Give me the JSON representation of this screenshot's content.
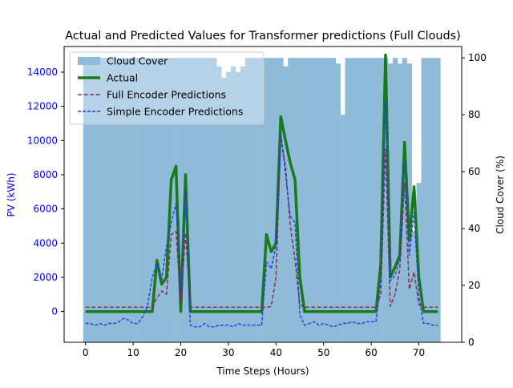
{
  "chart_data": {
    "type": "line",
    "title": "Actual and Predicted Values for Transformer predictions (Full Clouds)",
    "xlabel": "Time Steps (Hours)",
    "ylabel_left": "PV (kWh)",
    "ylabel_right": "Cloud Cover (%)",
    "xlim": [
      -4.5,
      79
    ],
    "ylim_left": [
      -1800,
      15500
    ],
    "ylim_right": [
      0,
      104
    ],
    "x_ticks": [
      0,
      10,
      20,
      30,
      40,
      50,
      60,
      70
    ],
    "y_left_ticks": [
      0,
      2000,
      4000,
      6000,
      8000,
      10000,
      12000,
      14000
    ],
    "y_right_ticks": [
      0,
      20,
      40,
      60,
      80,
      100
    ],
    "legend_position": "upper-left",
    "colors": {
      "cloud_cover": "#8fbbd9",
      "actual": "#1a7a1a",
      "full_encoder": "#8b2846",
      "simple_encoder": "#1f3fe0",
      "left_axis_text": "#0000ff"
    },
    "x": [
      0,
      1,
      2,
      3,
      4,
      5,
      6,
      7,
      8,
      9,
      10,
      11,
      12,
      13,
      14,
      15,
      16,
      17,
      18,
      19,
      20,
      21,
      22,
      23,
      24,
      25,
      26,
      27,
      28,
      29,
      30,
      31,
      32,
      33,
      34,
      35,
      36,
      37,
      38,
      39,
      40,
      41,
      42,
      43,
      44,
      45,
      46,
      47,
      48,
      49,
      50,
      51,
      52,
      53,
      54,
      55,
      56,
      57,
      58,
      59,
      60,
      61,
      62,
      63,
      64,
      65,
      66,
      67,
      68,
      69,
      70,
      71,
      72,
      73,
      74
    ],
    "series": [
      {
        "name": "Cloud Cover",
        "kind": "bar",
        "axis": "right",
        "values": [
          100,
          100,
          100,
          100,
          100,
          100,
          100,
          100,
          100,
          100,
          100,
          100,
          100,
          100,
          100,
          100,
          100,
          100,
          100,
          100,
          100,
          100,
          100,
          100,
          100,
          100,
          100,
          100,
          97,
          93,
          95,
          97,
          95,
          97,
          100,
          100,
          100,
          100,
          100,
          100,
          100,
          100,
          97,
          100,
          100,
          100,
          100,
          100,
          100,
          100,
          100,
          100,
          100,
          98,
          80,
          100,
          100,
          100,
          100,
          100,
          100,
          100,
          100,
          100,
          98,
          100,
          98,
          100,
          98,
          39,
          56,
          100,
          100,
          100,
          100
        ]
      },
      {
        "name": "Actual",
        "kind": "line",
        "axis": "left",
        "values": [
          0,
          0,
          0,
          0,
          0,
          0,
          0,
          0,
          0,
          0,
          0,
          0,
          0,
          0,
          0,
          3000,
          1600,
          2000,
          7700,
          8500,
          0,
          8000,
          0,
          0,
          0,
          0,
          0,
          0,
          0,
          0,
          0,
          0,
          0,
          0,
          0,
          0,
          0,
          0,
          4500,
          3500,
          4000,
          11400,
          10000,
          8700,
          7700,
          2000,
          0,
          0,
          0,
          0,
          0,
          0,
          0,
          0,
          0,
          0,
          0,
          0,
          0,
          0,
          0,
          0,
          2800,
          15000,
          2000,
          2600,
          3300,
          9900,
          4200,
          7300,
          2000,
          0,
          0,
          0,
          0
        ]
      },
      {
        "name": "Full Encoder Predictions",
        "kind": "line",
        "axis": "left",
        "values": [
          250,
          250,
          250,
          250,
          250,
          250,
          250,
          250,
          250,
          250,
          250,
          250,
          250,
          250,
          250,
          800,
          1200,
          1000,
          4500,
          4700,
          500,
          4600,
          250,
          250,
          250,
          250,
          250,
          250,
          250,
          250,
          250,
          250,
          250,
          250,
          250,
          250,
          250,
          250,
          250,
          300,
          2000,
          10200,
          8500,
          5000,
          3000,
          400,
          250,
          250,
          250,
          250,
          250,
          250,
          250,
          250,
          250,
          250,
          250,
          250,
          250,
          250,
          250,
          250,
          1000,
          9500,
          300,
          1000,
          2500,
          7500,
          1300,
          2300,
          400,
          250,
          250,
          250,
          250
        ]
      },
      {
        "name": "Simple Encoder Predictions",
        "kind": "line",
        "axis": "left",
        "values": [
          -700,
          -700,
          -800,
          -700,
          -800,
          -700,
          -700,
          -600,
          -400,
          -500,
          -700,
          -700,
          -300,
          300,
          2000,
          2800,
          1900,
          3800,
          5200,
          6300,
          1000,
          7000,
          -800,
          -900,
          -900,
          -700,
          -900,
          -900,
          -800,
          -800,
          -800,
          -900,
          -700,
          -800,
          -800,
          -800,
          -800,
          -800,
          2900,
          2500,
          3900,
          10500,
          8000,
          5600,
          5200,
          -200,
          -800,
          -700,
          -600,
          -800,
          -700,
          -800,
          -900,
          -800,
          -700,
          -700,
          -600,
          -700,
          -700,
          -600,
          -600,
          -600,
          1800,
          12300,
          1800,
          2100,
          3100,
          8800,
          3300,
          5800,
          900,
          -700,
          -700,
          -800,
          -800
        ]
      }
    ]
  }
}
